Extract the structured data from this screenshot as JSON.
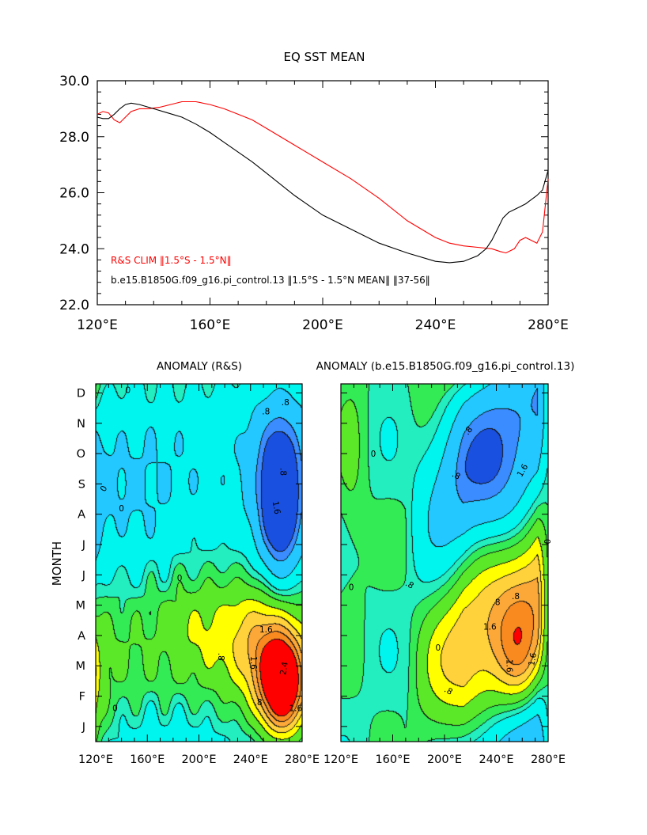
{
  "chart_data": [
    {
      "type": "line",
      "title": "EQ SST MEAN",
      "xlabel": "",
      "ylabel": "",
      "xlim": [
        120,
        280
      ],
      "ylim": [
        22.0,
        30.0
      ],
      "xticks": [
        "120°E",
        "160°E",
        "200°E",
        "240°E",
        "280°E"
      ],
      "yticks": [
        "22.0",
        "24.0",
        "26.0",
        "28.0",
        "30.0"
      ],
      "legend_position": "bottom-left",
      "series": [
        {
          "name": "R&S CLIM ‖1.5°S - 1.5°N‖",
          "color": "#ff0000",
          "x": [
            120,
            122,
            124,
            126,
            128,
            130,
            132,
            135,
            138,
            142,
            146,
            150,
            155,
            160,
            165,
            170,
            175,
            180,
            190,
            200,
            210,
            220,
            230,
            240,
            245,
            250,
            255,
            260,
            263,
            265,
            268,
            270,
            272,
            274,
            276,
            278,
            280
          ],
          "y": [
            28.8,
            28.9,
            28.85,
            28.6,
            28.5,
            28.7,
            28.9,
            29.0,
            29.0,
            29.05,
            29.15,
            29.25,
            29.25,
            29.15,
            29.0,
            28.8,
            28.6,
            28.3,
            27.7,
            27.1,
            26.5,
            25.8,
            25.0,
            24.4,
            24.2,
            24.1,
            24.05,
            24.0,
            23.9,
            23.85,
            24.0,
            24.3,
            24.4,
            24.3,
            24.2,
            24.6,
            26.5
          ]
        },
        {
          "name": "b.e15.B1850G.f09_g16.pi_control.13 ‖1.5°S - 1.5°N MEAN‖ ‖37-56‖",
          "color": "#000000",
          "x": [
            120,
            122,
            124,
            126,
            128,
            130,
            132,
            135,
            140,
            145,
            150,
            155,
            160,
            165,
            170,
            175,
            180,
            190,
            200,
            210,
            220,
            230,
            240,
            245,
            250,
            255,
            258,
            260,
            262,
            264,
            266,
            268,
            270,
            272,
            274,
            276,
            278,
            280
          ],
          "y": [
            28.7,
            28.65,
            28.65,
            28.8,
            29.0,
            29.15,
            29.2,
            29.15,
            29.0,
            28.85,
            28.7,
            28.45,
            28.15,
            27.8,
            27.45,
            27.1,
            26.7,
            25.9,
            25.2,
            24.7,
            24.2,
            23.85,
            23.55,
            23.5,
            23.55,
            23.75,
            24.0,
            24.3,
            24.7,
            25.1,
            25.3,
            25.4,
            25.5,
            25.6,
            25.75,
            25.9,
            26.1,
            26.8
          ]
        }
      ]
    },
    {
      "type": "heatmap",
      "title": "ANOMALY (R&S)",
      "ylabel": "MONTH",
      "xticks": [
        "120°E",
        "160°E",
        "200°E",
        "240°E",
        "280°E"
      ],
      "yticks": [
        "J",
        "F",
        "M",
        "A",
        "M",
        "J",
        "J",
        "A",
        "S",
        "O",
        "N",
        "D"
      ],
      "contour_labels": [
        "0",
        "0",
        "0",
        "0",
        ".8",
        ".8",
        "1.6",
        "1.6",
        ".8",
        ".8",
        "1.6",
        "2.4",
        "1.6",
        ".8",
        "0"
      ],
      "cold_pool": {
        "lon": 263,
        "month": 8.1,
        "amplitude": -2.5
      },
      "warm_pool": {
        "lon": 265,
        "month": 2.3,
        "amplitude": 3.0
      }
    },
    {
      "type": "heatmap",
      "title": "ANOMALY (b.e15.B1850G.f09_g16.pi_control.13)",
      "xticks": [
        "120°E",
        "160°E",
        "200°E",
        "240°E",
        "280°E"
      ],
      "yticks": [
        "J",
        "F",
        "M",
        "A",
        "M",
        "J",
        "J",
        "A",
        "S",
        "O",
        "N",
        "D"
      ],
      "contour_labels": [
        "0",
        "0",
        ".8",
        "1.6",
        ".8",
        "0",
        ".8",
        ".8",
        "1.6",
        ".8",
        "1.6",
        "1.6",
        ".8",
        "0"
      ],
      "cold_pool": {
        "lon": 240,
        "month": 8.7,
        "amplitude": -2.4
      },
      "warm_pool": {
        "lon": 258,
        "month": 3.2,
        "amplitude": 2.4
      }
    }
  ],
  "colors": {
    "deep_blue": "#1a50e0",
    "blue": "#3a8cff",
    "sky": "#22c8ff",
    "cyan": "#00f5ee",
    "aqua_green": "#22eec0",
    "green": "#33ec55",
    "bright_green": "#5ae828",
    "yellow": "#ffff00",
    "light_orange": "#ffd23c",
    "orange": "#fca838",
    "dark_orange": "#f88a20",
    "red": "#ff0000"
  }
}
